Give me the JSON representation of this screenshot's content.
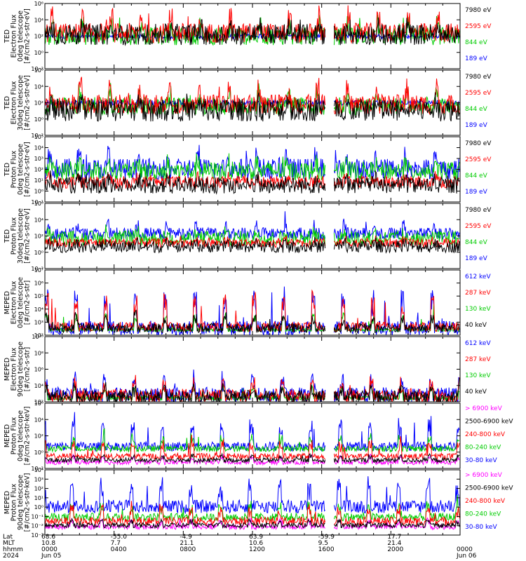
{
  "chart_data": [
    {
      "type": "line",
      "ylabel": [
        "TED",
        "Electron Flux",
        "0deg telescope",
        "[#/cm2-s-str-eV]"
      ],
      "yticks": [
        "10⁻²",
        "10⁰",
        "10²",
        "10⁴",
        "10⁶"
      ],
      "ylim_log10": [
        -2,
        6
      ],
      "series": [
        {
          "name": "7980 eV",
          "color": "#000000",
          "base": 2.2,
          "spread": 1.3,
          "spike": 0.8
        },
        {
          "name": "2595 eV",
          "color": "#ff0000",
          "base": 2.4,
          "spread": 1.2,
          "spike": 2.2
        },
        {
          "name": "844 eV",
          "color": "#00cc00",
          "base": 2.0,
          "spread": 1.1,
          "spike": 1.6
        },
        {
          "name": "189 eV",
          "color": "#0000ff",
          "base": 2.0,
          "spread": 0.3,
          "spike": 0.0
        }
      ]
    },
    {
      "type": "line",
      "ylabel": [
        "TED",
        "Electron Flux",
        "30deg telescope",
        "[#/cm2-s-str-eV]"
      ],
      "yticks": [
        "10⁻²",
        "10⁰",
        "10²",
        "10⁴",
        "10⁶"
      ],
      "ylim_log10": [
        -2,
        6
      ],
      "series": [
        {
          "name": "7980 eV",
          "color": "#000000",
          "base": 1.1,
          "spread": 1.4,
          "spike": 0.8
        },
        {
          "name": "2595 eV",
          "color": "#ff0000",
          "base": 1.8,
          "spread": 1.2,
          "spike": 2.2
        },
        {
          "name": "844 eV",
          "color": "#00cc00",
          "base": 1.6,
          "spread": 1.1,
          "spike": 1.6
        },
        {
          "name": "189 eV",
          "color": "#0000ff",
          "base": 2.0,
          "spread": 0.3,
          "spike": 0.0
        }
      ]
    },
    {
      "type": "line",
      "ylabel": [
        "TED",
        "Proton Flux",
        "0deg telescope",
        "[#/cm2-s-str-eV]"
      ],
      "yticks": [
        "10⁻¹",
        "10⁰",
        "10¹",
        "10²",
        "10³",
        "10⁴",
        "10⁵"
      ],
      "ylim_log10": [
        -1,
        5.3
      ],
      "series": [
        {
          "name": "7980 eV",
          "color": "#000000",
          "base": 0.6,
          "spread": 0.8,
          "spike": 0.6
        },
        {
          "name": "2595 eV",
          "color": "#ff0000",
          "base": 0.9,
          "spread": 0.6,
          "spike": 0.5
        },
        {
          "name": "844 eV",
          "color": "#00cc00",
          "base": 2.0,
          "spread": 0.9,
          "spike": 0.8
        },
        {
          "name": "189 eV",
          "color": "#0000ff",
          "base": 2.2,
          "spread": 1.0,
          "spike": 1.4
        }
      ]
    },
    {
      "type": "line",
      "ylabel": [
        "TED",
        "Proton Flux",
        "30deg telescope",
        "[#/cm2-s-str-eV]"
      ],
      "yticks": [
        "10⁻²",
        "10⁰",
        "10²",
        "10⁴",
        "10⁶"
      ],
      "ylim_log10": [
        -2.6,
        6
      ],
      "series": [
        {
          "name": "7980 eV",
          "color": "#000000",
          "base": 0.3,
          "spread": 0.8,
          "spike": 0.5
        },
        {
          "name": "2595 eV",
          "color": "#ff0000",
          "base": 0.8,
          "spread": 0.6,
          "spike": 0.4
        },
        {
          "name": "844 eV",
          "color": "#00cc00",
          "base": 1.4,
          "spread": 1.0,
          "spike": 0.8
        },
        {
          "name": "189 eV",
          "color": "#0000ff",
          "base": 2.0,
          "spread": 0.8,
          "spike": 1.3
        }
      ]
    },
    {
      "type": "line",
      "ylabel": [
        "MEPED",
        "Electron Flux",
        "0deg telescope",
        "[#/cm2-s-str]"
      ],
      "yticks": [
        "10²",
        "10³",
        "10⁴",
        "10⁵",
        "10⁶",
        "10⁷"
      ],
      "ylim_log10": [
        1.6,
        7
      ],
      "series": [
        {
          "name": "612 keV",
          "color": "#0000ff",
          "base": 2.2,
          "spread": 0.6,
          "spike": 2.8
        },
        {
          "name": "287 keV",
          "color": "#ff0000",
          "base": 2.3,
          "spread": 0.4,
          "spike": 2.4
        },
        {
          "name": "130 keV",
          "color": "#00cc00",
          "base": 2.05,
          "spread": 0.15,
          "spike": 1.2
        },
        {
          "name": "40 keV",
          "color": "#000000",
          "base": 2.2,
          "spread": 0.4,
          "spike": 1.0
        }
      ]
    },
    {
      "type": "line",
      "ylabel": [
        "MEPED",
        "Electron Flux",
        "90deg telescope",
        "[#/cm2-s-str]"
      ],
      "yticks": [
        "10²",
        "10⁴",
        "10⁶",
        "10⁸",
        "10¹⁰"
      ],
      "ylim_log10": [
        1.5,
        10
      ],
      "series": [
        {
          "name": "612 keV",
          "color": "#0000ff",
          "base": 2.4,
          "spread": 1.0,
          "spike": 2.2
        },
        {
          "name": "287 keV",
          "color": "#ff0000",
          "base": 2.3,
          "spread": 0.9,
          "spike": 1.8
        },
        {
          "name": "130 keV",
          "color": "#00cc00",
          "base": 2.0,
          "spread": 0.3,
          "spike": 1.4
        },
        {
          "name": "40 keV",
          "color": "#000000",
          "base": 2.2,
          "spread": 0.8,
          "spike": 1.2
        }
      ]
    },
    {
      "type": "line",
      "ylabel": [
        "MEPED",
        "Proton Flux",
        "0deg telescope",
        "[#/cm2-s-str-keV]"
      ],
      "yticks": [
        "10⁻²",
        "10⁰",
        "10²",
        "10⁴",
        "10⁶"
      ],
      "ylim_log10": [
        -2.6,
        6
      ],
      "series": [
        {
          "name": "> 6900 keV",
          "color": "#ff00ff",
          "base": -1.8,
          "spread": 0.3,
          "spike": 0.8
        },
        {
          "name": "2500-6900 keV",
          "color": "#000000",
          "base": -1.5,
          "spread": 0.3,
          "spike": 0.6
        },
        {
          "name": "240-800 keV",
          "color": "#ff0000",
          "base": -1.0,
          "spread": 0.4,
          "spike": 1.8
        },
        {
          "name": "80-240 keV",
          "color": "#00cc00",
          "base": 0.0,
          "spread": 0.4,
          "spike": 1.6
        },
        {
          "name": "30-80 keV",
          "color": "#0000ff",
          "base": 0.3,
          "spread": 0.6,
          "spike": 3.0
        }
      ]
    },
    {
      "type": "line",
      "ylabel": [
        "MEPED",
        "Proton Flux",
        "90deg telescope",
        "[#/cm2-s-str-keV]"
      ],
      "yticks": [
        "10⁻³",
        "10⁻²",
        "10⁻¹",
        "10⁰",
        "10¹",
        "10²",
        "10³",
        "10⁴"
      ],
      "ylim_log10": [
        -3,
        5
      ],
      "series": [
        {
          "name": "> 6900 keV",
          "color": "#ff00ff",
          "base": -2.0,
          "spread": 0.3,
          "spike": 0.8
        },
        {
          "name": "2500-6900 keV",
          "color": "#000000",
          "base": -1.8,
          "spread": 0.3,
          "spike": 0.6
        },
        {
          "name": "240-800 keV",
          "color": "#ff0000",
          "base": -1.3,
          "spread": 0.5,
          "spike": 1.6
        },
        {
          "name": "80-240 keV",
          "color": "#00cc00",
          "base": -0.8,
          "spread": 0.5,
          "spike": 1.4
        },
        {
          "name": "30-80 keV",
          "color": "#0000ff",
          "base": 0.5,
          "spread": 0.8,
          "spike": 2.8
        }
      ]
    }
  ],
  "footer": {
    "row_labels": [
      "Lat",
      "MLT",
      "hhmm",
      "2024"
    ],
    "columns": [
      {
        "lat": "68.6",
        "mlt": "10.8",
        "hhmm": "0000",
        "date": "Jun 05"
      },
      {
        "lat": "-55.0",
        "mlt": "7.7",
        "hhmm": "0400",
        "date": ""
      },
      {
        "lat": "-4.9",
        "mlt": "21.1",
        "hhmm": "0800",
        "date": ""
      },
      {
        "lat": "63.9",
        "mlt": "10.6",
        "hhmm": "1200",
        "date": ""
      },
      {
        "lat": "-59.9",
        "mlt": "9.5",
        "hhmm": "1600",
        "date": ""
      },
      {
        "lat": "17.7",
        "mlt": "21.4",
        "hhmm": "2000",
        "date": ""
      },
      {
        "lat": "",
        "mlt": "",
        "hhmm": "0000",
        "date": "Jun 06"
      }
    ]
  }
}
